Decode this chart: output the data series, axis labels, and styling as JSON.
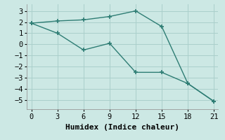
{
  "line1_x": [
    0,
    3,
    6,
    9,
    12,
    15,
    18,
    21
  ],
  "line1_y": [
    1.9,
    2.1,
    2.2,
    2.5,
    3.0,
    1.6,
    -3.5,
    -5.1
  ],
  "line2_x": [
    0,
    3,
    6,
    9,
    12,
    15,
    18,
    21
  ],
  "line2_y": [
    1.9,
    1.0,
    -0.5,
    0.1,
    -2.5,
    -2.5,
    -3.5,
    -5.1
  ],
  "line_color": "#2e7d74",
  "background_color": "#cce8e4",
  "grid_color": "#aacfcb",
  "xlabel": "Humidex (Indice chaleur)",
  "xlim": [
    -0.5,
    21.5
  ],
  "ylim": [
    -5.8,
    3.6
  ],
  "xticks": [
    0,
    3,
    6,
    9,
    12,
    15,
    18,
    21
  ],
  "yticks": [
    -5,
    -4,
    -3,
    -2,
    -1,
    0,
    1,
    2,
    3
  ],
  "xlabel_fontsize": 8,
  "tick_fontsize": 7.5,
  "line_width": 1.0,
  "marker": "+",
  "marker_size": 4,
  "marker_linewidth": 1.2
}
